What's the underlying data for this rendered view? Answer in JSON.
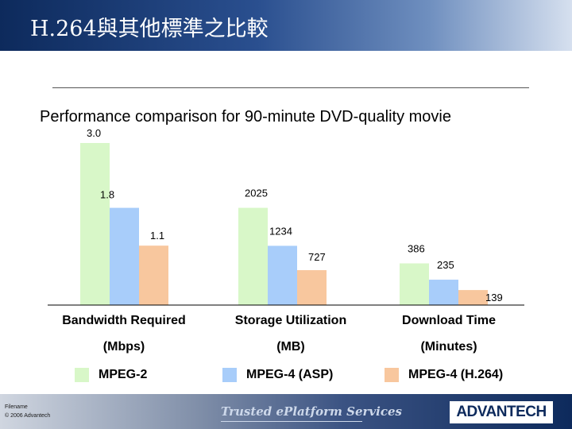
{
  "slide": {
    "title": "H.264與其他標準之比較",
    "subtitle": "Performance comparison for 90-minute DVD-quality movie"
  },
  "footer": {
    "filename": "Filename",
    "copyright": "© 2006 Advantech",
    "slogan": "Trusted ePlatform Services",
    "logo": "ADVANTECH"
  },
  "colors": {
    "header": "#0d2a5c",
    "mpeg2": "#d8f7c8",
    "mpeg4_asp": "#a8cdfa",
    "h264": "#f8c79e"
  },
  "chart_data": {
    "type": "bar",
    "title": "Performance comparison for 90-minute DVD-quality movie",
    "groups": [
      {
        "name": "Bandwidth Required",
        "unit": "(Mbps)",
        "values": [
          3.0,
          1.8,
          1.1
        ],
        "labels": [
          "3.0",
          "1.8",
          "1.1"
        ],
        "max": 3.0
      },
      {
        "name": "Storage Utilization",
        "unit": "(MB)",
        "values": [
          2025,
          1234,
          727
        ],
        "labels": [
          "2025",
          "1234",
          "727"
        ],
        "max": 3375
      },
      {
        "name": "Download Time",
        "unit": "(Minutes)",
        "values": [
          386,
          235,
          139
        ],
        "labels": [
          "386",
          "235",
          "139"
        ],
        "max": 1500
      }
    ],
    "series": [
      {
        "name": "MPEG-2",
        "color": "#d8f7c8"
      },
      {
        "name": "MPEG-4 (ASP)",
        "color": "#a8cdfa"
      },
      {
        "name": "MPEG-4 (H.264)",
        "color": "#f8c79e"
      }
    ],
    "grid": false,
    "legend": "bottom"
  }
}
